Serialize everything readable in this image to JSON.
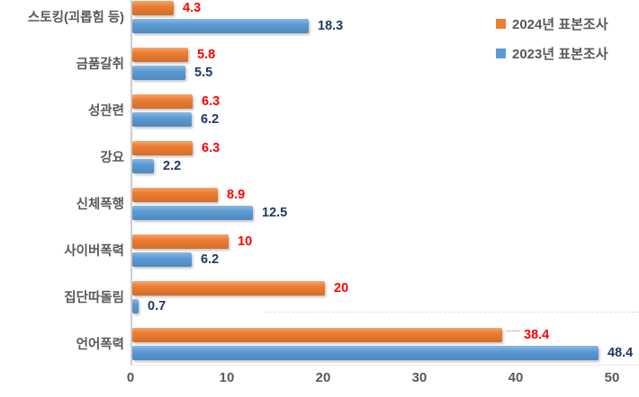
{
  "chart_data": {
    "type": "bar",
    "orientation": "horizontal",
    "title": "",
    "xlabel": "",
    "ylabel": "",
    "categories": [
      "스토킹(괴롭힘 등)",
      "금품갈취",
      "성관련",
      "강요",
      "신체폭행",
      "사이버폭력",
      "집단따돌림",
      "언어폭력"
    ],
    "series": [
      {
        "name": "2024년 표본조사",
        "color": "#ED7D31",
        "label_color": "#FF0000",
        "values": [
          4.3,
          5.8,
          6.3,
          6.3,
          8.9,
          10,
          20,
          38.4
        ],
        "labels": [
          "4.3",
          "5.8",
          "6.3",
          "6.3",
          "8.9",
          "10",
          "20",
          "38.4"
        ]
      },
      {
        "name": "2023년 표본조사",
        "color": "#5B9BD5",
        "label_color": "#1F3864",
        "values": [
          18.3,
          5.5,
          6.2,
          2.2,
          12.5,
          6.2,
          0.7,
          48.4
        ],
        "labels": [
          "18.3",
          "5.5",
          "6.2",
          "2.2",
          "12.5",
          "6.2",
          "0.7",
          "48.4"
        ]
      }
    ],
    "xlim": [
      0,
      50
    ],
    "x_ticks": [
      "0",
      "10",
      "20",
      "30",
      "40",
      "50"
    ],
    "grid": false,
    "legend_position": "top-right"
  },
  "style": {
    "category_label_color": "#595959",
    "axis_label_color": "#595959",
    "axis_line_color": "#cccccc"
  }
}
